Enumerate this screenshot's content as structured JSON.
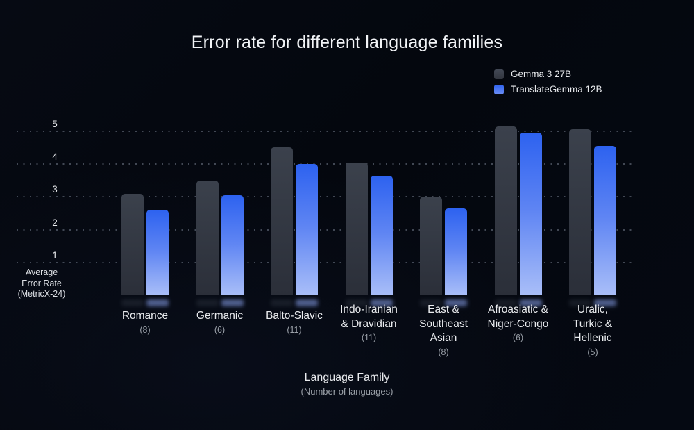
{
  "title": "Error rate for different language families",
  "legend": {
    "items": [
      {
        "label": "Gemma 3 27B",
        "color": "#3A3F4A"
      },
      {
        "label": "TranslateGemma 12B",
        "color": "#3465F0"
      }
    ]
  },
  "y_axis": {
    "label_lines": [
      "Average",
      "Error Rate",
      "(MetricX-24)"
    ],
    "ticks": [
      5,
      4,
      3,
      2,
      1
    ]
  },
  "x_axis": {
    "title": "Language Family",
    "subtitle": "(Number of languages)"
  },
  "chart_data": {
    "type": "bar",
    "title": "Error rate for different language families",
    "xlabel": "Language Family (Number of languages)",
    "ylabel": "Average Error Rate (MetricX-24)",
    "ylim": [
      0,
      5.5
    ],
    "yticks": [
      1,
      2,
      3,
      4,
      5
    ],
    "grid": "horizontal dotted",
    "legend_position": "top-right",
    "categories": [
      {
        "name": "Romance",
        "lines": [
          "Romance"
        ],
        "count": "(8)"
      },
      {
        "name": "Germanic",
        "lines": [
          "Germanic"
        ],
        "count": "(6)"
      },
      {
        "name": "Balto-Slavic",
        "lines": [
          "Balto-Slavic"
        ],
        "count": "(11)"
      },
      {
        "name": "Indo-Iranian & Dravidian",
        "lines": [
          "Indo-Iranian",
          "& Dravidian"
        ],
        "count": "(11)"
      },
      {
        "name": "East & Southeast Asian",
        "lines": [
          "East &",
          "Southeast",
          "Asian"
        ],
        "count": "(8)"
      },
      {
        "name": "Afroasiatic & Niger-Congo",
        "lines": [
          "Afroasiatic &",
          "Niger-Congo"
        ],
        "count": "(6)"
      },
      {
        "name": "Uralic, Turkic & Hellenic",
        "lines": [
          "Uralic,",
          "Turkic &",
          "Hellenic"
        ],
        "count": "(5)"
      }
    ],
    "series": [
      {
        "name": "Gemma 3 27B",
        "color": "#3A3F4A",
        "values": [
          3.1,
          3.5,
          4.5,
          4.05,
          3.0,
          5.15,
          5.05
        ]
      },
      {
        "name": "TranslateGemma 12B",
        "color": "#3465F0",
        "values": [
          2.6,
          3.05,
          4.0,
          3.65,
          2.65,
          4.95,
          4.55
        ]
      }
    ]
  }
}
